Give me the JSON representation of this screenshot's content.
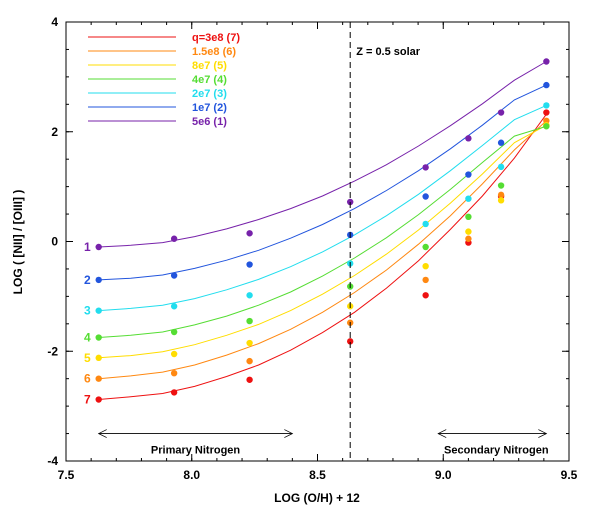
{
  "chart_data": {
    "type": "scatter",
    "title": "",
    "xlabel": "LOG (O/H) + 12",
    "ylabel": "LOG ( [NII] / [OIII] )",
    "xlim": [
      7.5,
      9.5
    ],
    "ylim": [
      -4,
      4
    ],
    "xticks": [
      "7.5",
      "8.0",
      "8.5",
      "9.0",
      "9.5"
    ],
    "xtick_values": [
      7.5,
      8.0,
      8.5,
      9.0,
      9.5
    ],
    "yticks": [
      "-4",
      "-2",
      "0",
      "2",
      "4"
    ],
    "ytick_values": [
      -4,
      -2,
      0,
      2,
      4
    ],
    "grid": false,
    "legend_position": "top-left",
    "x": [
      7.63,
      7.93,
      8.23,
      8.63,
      8.93,
      9.1,
      9.23,
      9.41
    ],
    "series": [
      {
        "name": "q=3e8 (7)",
        "label": "7",
        "color": "#ee1111",
        "values": [
          -2.88,
          -2.75,
          -2.52,
          -1.82,
          -0.98,
          -0.02,
          0.82,
          2.35
        ],
        "curve": [
          -2.88,
          -2.83,
          -2.77,
          -2.64,
          -2.46,
          -2.25,
          -1.98,
          -1.66,
          -1.29,
          -0.85,
          -0.35,
          0.22,
          0.83,
          1.52,
          2.32
        ]
      },
      {
        "name": "1.5e8 (6)",
        "label": "6",
        "color": "#ff8811",
        "values": [
          -2.5,
          -2.4,
          -2.18,
          -1.48,
          -0.7,
          0.05,
          0.85,
          2.2
        ],
        "curve": [
          -2.5,
          -2.45,
          -2.38,
          -2.25,
          -2.07,
          -1.86,
          -1.6,
          -1.29,
          -0.93,
          -0.52,
          -0.05,
          0.47,
          1.05,
          1.67,
          2.2
        ]
      },
      {
        "name": "8e7 (5)",
        "label": "5",
        "color": "#ffdd00",
        "values": [
          -2.12,
          -2.05,
          -1.85,
          -1.18,
          -0.45,
          0.18,
          0.75,
          2.12
        ],
        "curve": [
          -2.12,
          -2.08,
          -2.01,
          -1.88,
          -1.71,
          -1.51,
          -1.26,
          -0.96,
          -0.62,
          -0.23,
          0.21,
          0.7,
          1.23,
          1.8,
          2.12
        ]
      },
      {
        "name": "4e7 (4)",
        "label": "4",
        "color": "#55dd33",
        "values": [
          -1.75,
          -1.65,
          -1.45,
          -0.82,
          -0.1,
          0.45,
          1.02,
          2.1
        ],
        "curve": [
          -1.75,
          -1.71,
          -1.65,
          -1.52,
          -1.36,
          -1.16,
          -0.92,
          -0.63,
          -0.3,
          0.07,
          0.49,
          0.95,
          1.44,
          1.92,
          2.1
        ]
      },
      {
        "name": "2e7 (3)",
        "label": "3",
        "color": "#22ddee",
        "values": [
          -1.26,
          -1.18,
          -0.98,
          -0.4,
          0.32,
          0.78,
          1.36,
          2.48
        ],
        "curve": [
          -1.26,
          -1.22,
          -1.16,
          -1.04,
          -0.88,
          -0.69,
          -0.46,
          -0.19,
          0.12,
          0.47,
          0.86,
          1.29,
          1.75,
          2.22,
          2.48
        ]
      },
      {
        "name": "1e7 (2)",
        "label": "2",
        "color": "#2255dd",
        "values": [
          -0.7,
          -0.62,
          -0.42,
          0.12,
          0.82,
          1.22,
          1.8,
          2.85
        ],
        "curve": [
          -0.7,
          -0.67,
          -0.61,
          -0.49,
          -0.34,
          -0.16,
          0.06,
          0.31,
          0.6,
          0.93,
          1.29,
          1.69,
          2.12,
          2.58,
          2.85
        ]
      },
      {
        "name": "5e6 (1)",
        "label": "1",
        "color": "#7722aa",
        "values": [
          -0.1,
          0.05,
          0.15,
          0.72,
          1.35,
          1.88,
          2.35,
          3.28
        ],
        "curve": [
          -0.1,
          -0.07,
          -0.02,
          0.09,
          0.23,
          0.4,
          0.6,
          0.83,
          1.1,
          1.4,
          1.74,
          2.11,
          2.51,
          2.94,
          3.28
        ]
      }
    ],
    "annotations": {
      "solar_label": "Z = 0.5 solar",
      "solar_x": 8.63,
      "primary_label": "Primary Nitrogen",
      "primary_arrow_x": [
        7.63,
        8.4
      ],
      "primary_arrow_y": -3.5,
      "secondary_label": "Secondary Nitrogen",
      "secondary_arrow_x": [
        8.98,
        9.41
      ],
      "secondary_arrow_y": -3.5
    }
  }
}
